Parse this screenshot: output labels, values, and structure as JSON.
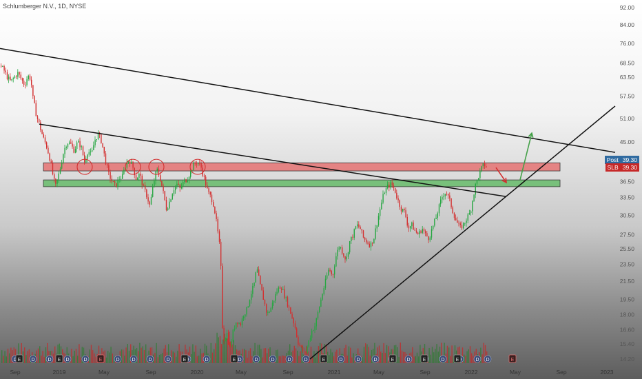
{
  "header": {
    "title": "Schlumberger N.V., 1D, NYSE"
  },
  "price_tags": [
    {
      "label": "Post",
      "value": "39.30",
      "color": "#2f6aa0"
    },
    {
      "label": "SLB",
      "value": "39.30",
      "color": "#c62828"
    }
  ],
  "event_markers": {
    "dividend": "D",
    "earnings": "E"
  },
  "chart_data": {
    "type": "candlestick",
    "symbol": "SLB",
    "title": "Schlumberger N.V., 1D, NYSE",
    "y_scale": "log",
    "ylim": [
      14.2,
      92.0
    ],
    "y_ticks": [
      92.0,
      84.0,
      76.0,
      68.5,
      63.5,
      57.5,
      51.0,
      45.0,
      39.3,
      36.5,
      33.5,
      30.5,
      27.5,
      25.5,
      23.5,
      21.5,
      19.5,
      18.0,
      16.6,
      15.4,
      14.2
    ],
    "x_ticks": [
      "Sep",
      "2019",
      "May",
      "Sep",
      "2020",
      "May",
      "Sep",
      "2021",
      "May",
      "Sep",
      "2022",
      "May",
      "Sep",
      "2023"
    ],
    "last_price": 39.3,
    "price_path": [
      [
        0,
        67.5
      ],
      [
        5,
        66
      ],
      [
        10,
        63.5
      ],
      [
        15,
        62
      ],
      [
        20,
        63.5
      ],
      [
        25,
        65
      ],
      [
        30,
        63
      ],
      [
        35,
        61
      ],
      [
        40,
        64
      ],
      [
        44,
        63
      ],
      [
        47,
        57
      ],
      [
        52,
        52
      ],
      [
        57,
        49
      ],
      [
        62,
        46
      ],
      [
        67,
        44
      ],
      [
        72,
        41
      ],
      [
        77,
        37
      ],
      [
        80,
        35.5
      ],
      [
        84,
        37.5
      ],
      [
        88,
        40
      ],
      [
        92,
        43
      ],
      [
        97,
        45
      ],
      [
        102,
        44.5
      ],
      [
        107,
        43
      ],
      [
        112,
        45
      ],
      [
        117,
        44
      ],
      [
        122,
        40.5
      ],
      [
        127,
        43
      ],
      [
        132,
        42
      ],
      [
        137,
        45.5
      ],
      [
        142,
        47
      ],
      [
        147,
        45
      ],
      [
        152,
        41
      ],
      [
        157,
        38
      ],
      [
        162,
        36.5
      ],
      [
        167,
        35.5
      ],
      [
        172,
        37
      ],
      [
        177,
        37.5
      ],
      [
        182,
        40
      ],
      [
        187,
        41
      ],
      [
        192,
        39.5
      ],
      [
        197,
        37
      ],
      [
        202,
        38
      ],
      [
        207,
        35.5
      ],
      [
        212,
        34
      ],
      [
        217,
        32
      ],
      [
        222,
        36
      ],
      [
        227,
        39
      ],
      [
        232,
        37
      ],
      [
        237,
        34
      ],
      [
        241,
        31.5
      ],
      [
        246,
        33
      ],
      [
        251,
        35
      ],
      [
        256,
        36
      ],
      [
        261,
        35
      ],
      [
        266,
        36.5
      ],
      [
        271,
        37
      ],
      [
        276,
        38.5
      ],
      [
        281,
        40
      ],
      [
        286,
        40.5
      ],
      [
        291,
        39.5
      ],
      [
        296,
        37
      ],
      [
        301,
        34.5
      ],
      [
        306,
        33.5
      ],
      [
        310,
        32
      ],
      [
        314,
        29
      ],
      [
        318,
        26
      ],
      [
        320,
        23
      ],
      [
        322,
        17
      ],
      [
        325,
        15.5
      ],
      [
        328,
        16.5
      ],
      [
        333,
        15
      ],
      [
        338,
        16.5
      ],
      [
        343,
        17.5
      ],
      [
        348,
        17
      ],
      [
        353,
        18
      ],
      [
        358,
        18.5
      ],
      [
        363,
        20
      ],
      [
        368,
        21
      ],
      [
        372,
        23
      ],
      [
        377,
        21
      ],
      [
        382,
        19.5
      ],
      [
        387,
        18
      ],
      [
        392,
        18.5
      ],
      [
        397,
        19.5
      ],
      [
        402,
        20.5
      ],
      [
        407,
        21
      ],
      [
        412,
        20
      ],
      [
        417,
        19
      ],
      [
        422,
        18
      ],
      [
        427,
        17
      ],
      [
        432,
        15.5
      ],
      [
        437,
        15
      ],
      [
        442,
        14.5
      ],
      [
        447,
        15.5
      ],
      [
        452,
        16.5
      ],
      [
        457,
        17
      ],
      [
        462,
        18.5
      ],
      [
        467,
        20
      ],
      [
        472,
        21.5
      ],
      [
        477,
        23
      ],
      [
        482,
        22
      ],
      [
        487,
        24.5
      ],
      [
        492,
        26
      ],
      [
        497,
        25
      ],
      [
        502,
        24
      ],
      [
        507,
        26.5
      ],
      [
        512,
        27.5
      ],
      [
        517,
        29
      ],
      [
        522,
        28.5
      ],
      [
        527,
        27
      ],
      [
        532,
        26.5
      ],
      [
        537,
        26
      ],
      [
        542,
        27
      ],
      [
        547,
        29.5
      ],
      [
        552,
        32
      ],
      [
        557,
        34.5
      ],
      [
        562,
        35.5
      ],
      [
        567,
        36
      ],
      [
        572,
        35
      ],
      [
        577,
        33
      ],
      [
        582,
        31.5
      ],
      [
        587,
        31
      ],
      [
        592,
        28.5
      ],
      [
        597,
        29
      ],
      [
        602,
        28
      ],
      [
        607,
        27.5
      ],
      [
        612,
        28.5
      ],
      [
        617,
        27.5
      ],
      [
        622,
        27
      ],
      [
        627,
        28.5
      ],
      [
        632,
        30
      ],
      [
        637,
        32
      ],
      [
        642,
        34
      ],
      [
        647,
        34.5
      ],
      [
        652,
        33
      ],
      [
        657,
        31
      ],
      [
        662,
        29.5
      ],
      [
        667,
        28.5
      ],
      [
        672,
        29
      ],
      [
        677,
        30
      ],
      [
        682,
        31
      ],
      [
        686,
        33.5
      ],
      [
        690,
        36
      ],
      [
        694,
        37.5
      ],
      [
        698,
        39
      ],
      [
        702,
        40
      ],
      [
        706,
        39.3
      ]
    ],
    "bands": [
      {
        "name": "resistance",
        "low": 38.6,
        "high": 40.3,
        "x_start": "2018-12",
        "x_end": "2022-08",
        "color": "#e57373"
      },
      {
        "name": "support",
        "low": 35.5,
        "high": 36.8,
        "x_start": "2018-12",
        "x_end": "2022-08",
        "color": "#66bb6a"
      }
    ],
    "trendlines": [
      {
        "name": "long-term-downtrend",
        "points": [
          [
            0,
            74.0
          ],
          [
            893,
            42.6
          ]
        ],
        "color": "#111111"
      },
      {
        "name": "mid-downtrend",
        "points": [
          [
            57,
            49.5
          ],
          [
            734,
            33.7
          ]
        ],
        "color": "#111111"
      },
      {
        "name": "uptrend",
        "points": [
          [
            450,
            14.2
          ],
          [
            893,
            54.5
          ]
        ],
        "color": "#111111"
      }
    ],
    "circles_at": [
      123,
      193,
      227,
      287
    ],
    "projection": [
      {
        "kind": "down",
        "from": [
          720,
          39.3
        ],
        "to": [
          735,
          36.3
        ],
        "color": "#d32f2f"
      },
      {
        "kind": "up",
        "from": [
          755,
          36.8
        ],
        "to": [
          772,
          47.2
        ],
        "color": "#43a047"
      }
    ]
  }
}
